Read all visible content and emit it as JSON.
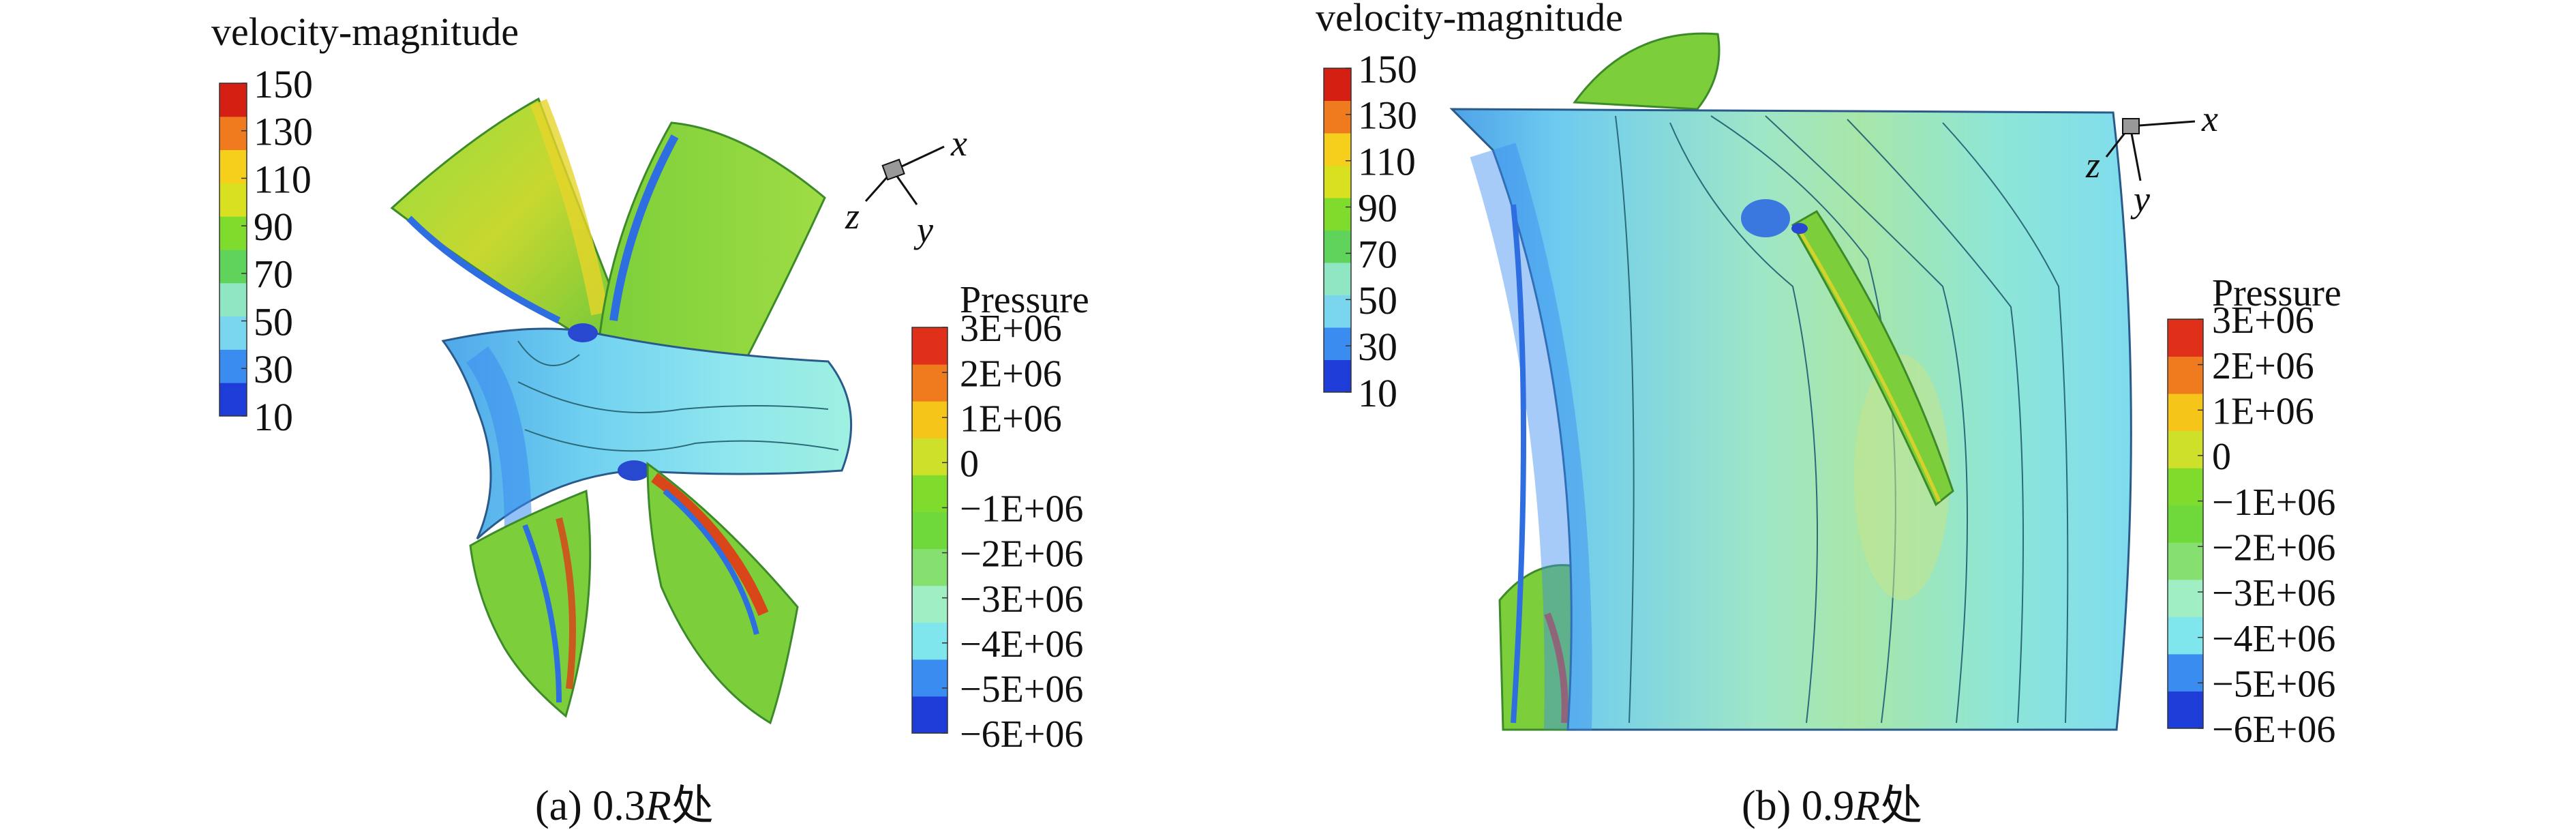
{
  "colors": {
    "velocity_scale": [
      "#1e3cd8",
      "#3a8cf0",
      "#7ad6ee",
      "#8ee6c2",
      "#5fd35a",
      "#7fdc2c",
      "#d8e020",
      "#f6cf1c",
      "#f07a1e",
      "#d41f12"
    ],
    "pressure_scale": [
      "#1e3cd8",
      "#3a8cf0",
      "#7fe6ee",
      "#a0eec4",
      "#86e070",
      "#6fd83a",
      "#7fdc2c",
      "#cfe02a",
      "#f6c51a",
      "#f07a1e",
      "#e0301a"
    ],
    "hub": "#79dcf0",
    "hub_dark": "#49a8e8",
    "blade_green": "#7ccf3a",
    "blade_yellow": "#d6d22c",
    "blade_blue": "#2e6ee0",
    "blade_red": "#d8461a"
  },
  "panels": [
    {
      "id": "a",
      "caption_prefix": "(a) 0.3",
      "caption_italic": "R",
      "caption_suffix": "处",
      "velocity_legend": {
        "title": "velocity-magnitude",
        "labels": [
          "150",
          "130",
          "110",
          "90",
          "70",
          "50",
          "30",
          "10"
        ]
      },
      "pressure_legend": {
        "title": "Pressure",
        "labels": [
          "3E+06",
          "2E+06",
          "1E+06",
          "0",
          "−1E+06",
          "−2E+06",
          "−3E+06",
          "−4E+06",
          "−5E+06",
          "−6E+06"
        ]
      },
      "axes": {
        "x": "x",
        "y": "y",
        "z": "z"
      }
    },
    {
      "id": "b",
      "caption_prefix": "(b) 0.9",
      "caption_italic": "R",
      "caption_suffix": "处",
      "velocity_legend": {
        "title": "velocity-magnitude",
        "labels": [
          "150",
          "130",
          "110",
          "90",
          "70",
          "50",
          "30",
          "10"
        ]
      },
      "pressure_legend": {
        "title": "Pressure",
        "labels": [
          "3E+06",
          "2E+06",
          "1E+06",
          "0",
          "−1E+06",
          "−2E+06",
          "−3E+06",
          "−4E+06",
          "−5E+06",
          "−6E+06"
        ]
      },
      "axes": {
        "x": "x",
        "y": "y",
        "z": "z"
      }
    }
  ]
}
